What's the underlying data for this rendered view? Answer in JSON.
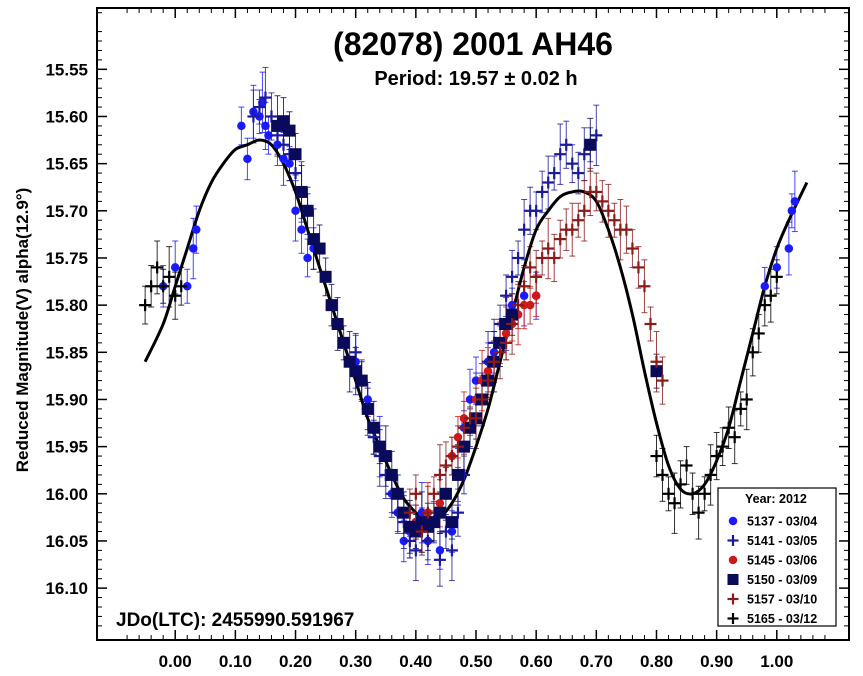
{
  "chart_data": {
    "type": "scatter",
    "title": "(82078) 2001 AH46",
    "subtitle": "Period: 19.57 ± 0.02 h",
    "ylabel": "Reduced Magnitude(V) alpha(12.9°)",
    "xlabel": "",
    "annotation": "JDo(LTC): 2455990.591967",
    "xlim": [
      -0.13,
      1.12
    ],
    "ylim": [
      16.155,
      15.485
    ],
    "y_inverted": true,
    "grid": false,
    "x_ticks": [
      "0.00",
      "0.10",
      "0.20",
      "0.30",
      "0.40",
      "0.50",
      "0.60",
      "0.70",
      "0.80",
      "0.90",
      "1.00"
    ],
    "y_ticks": [
      "15.55",
      "15.60",
      "15.65",
      "15.70",
      "15.75",
      "15.80",
      "15.85",
      "15.90",
      "15.95",
      "16.00",
      "16.05",
      "16.10"
    ],
    "legend": {
      "title": "Year: 2012",
      "position": "bottom-right"
    },
    "series": [
      {
        "name": "5137 - 03/04",
        "marker": "circle",
        "color": "#1a1aff",
        "x": [
          -0.02,
          0.0,
          0.02,
          0.03,
          0.035,
          0.11,
          0.12,
          0.13,
          0.14,
          0.145,
          0.15,
          0.155,
          0.17,
          0.18,
          0.19,
          0.2,
          0.21,
          0.22,
          0.23,
          0.3,
          0.32,
          0.34,
          0.36,
          0.37,
          0.38,
          0.39,
          0.4,
          0.41,
          0.42,
          0.44,
          0.46,
          0.47,
          0.48,
          0.49,
          0.5,
          0.52,
          0.53,
          0.55,
          0.56,
          0.58,
          0.6,
          0.98,
          1.0,
          1.02,
          1.025,
          1.03
        ],
        "y": [
          15.78,
          15.76,
          15.78,
          15.74,
          15.72,
          15.61,
          15.645,
          15.595,
          15.6,
          15.585,
          15.61,
          15.62,
          15.63,
          15.645,
          15.65,
          15.7,
          15.72,
          15.75,
          15.74,
          15.86,
          15.9,
          15.95,
          16.0,
          16.02,
          16.05,
          16.04,
          16.03,
          16.02,
          16.05,
          16.06,
          16.04,
          15.98,
          15.93,
          15.9,
          15.88,
          15.86,
          15.85,
          15.82,
          15.8,
          15.79,
          15.79,
          15.78,
          15.76,
          15.74,
          15.7,
          15.69
        ]
      },
      {
        "name": "5141 - 03/05",
        "marker": "plus",
        "color": "#1a1a9a",
        "x": [
          0.13,
          0.14,
          0.15,
          0.16,
          0.17,
          0.18,
          0.19,
          0.2,
          0.21,
          0.22,
          0.3,
          0.31,
          0.32,
          0.33,
          0.34,
          0.35,
          0.36,
          0.37,
          0.38,
          0.39,
          0.4,
          0.41,
          0.42,
          0.43,
          0.44,
          0.45,
          0.46,
          0.47,
          0.48,
          0.49,
          0.5,
          0.51,
          0.52,
          0.53,
          0.54,
          0.55,
          0.56,
          0.57,
          0.58,
          0.59,
          0.6,
          0.61,
          0.62,
          0.63,
          0.64,
          0.65,
          0.66,
          0.67,
          0.68,
          0.69,
          0.7
        ],
        "y": [
          15.6,
          15.59,
          15.58,
          15.6,
          15.62,
          15.63,
          15.64,
          15.66,
          15.68,
          15.7,
          15.85,
          15.88,
          15.91,
          15.94,
          15.96,
          15.98,
          16.0,
          16.02,
          16.03,
          16.05,
          16.06,
          16.04,
          16.05,
          16.03,
          16.07,
          16.04,
          16.06,
          16.02,
          15.98,
          15.93,
          15.9,
          15.88,
          15.86,
          15.84,
          15.82,
          15.79,
          15.77,
          15.75,
          15.72,
          15.7,
          15.7,
          15.68,
          15.67,
          15.66,
          15.64,
          15.63,
          15.65,
          15.66,
          15.64,
          15.63,
          15.62
        ]
      },
      {
        "name": "5145 - 03/06",
        "marker": "circle",
        "color": "#cc1a1a",
        "x": [
          0.4,
          0.42,
          0.44,
          0.46,
          0.47,
          0.48,
          0.5,
          0.51,
          0.52,
          0.53,
          0.54,
          0.55,
          0.56,
          0.57,
          0.58,
          0.59,
          0.6
        ],
        "y": [
          16.03,
          16.02,
          16.01,
          15.96,
          15.94,
          15.92,
          15.9,
          15.88,
          15.87,
          15.86,
          15.84,
          15.83,
          15.82,
          15.81,
          15.8,
          15.8,
          15.79
        ]
      },
      {
        "name": "5150 - 03/09",
        "marker": "square",
        "color": "#0a0a5a",
        "x": [
          0.17,
          0.18,
          0.19,
          0.2,
          0.21,
          0.22,
          0.23,
          0.24,
          0.25,
          0.26,
          0.27,
          0.28,
          0.29,
          0.3,
          0.31,
          0.32,
          0.33,
          0.34,
          0.35,
          0.36,
          0.37,
          0.38,
          0.39,
          0.4,
          0.41,
          0.42,
          0.43,
          0.44,
          0.45,
          0.46,
          0.47,
          0.48,
          0.49,
          0.5,
          0.51,
          0.52,
          0.53,
          0.54,
          0.55,
          0.56,
          0.69,
          0.8
        ],
        "y": [
          15.61,
          15.605,
          15.615,
          15.64,
          15.68,
          15.7,
          15.73,
          15.74,
          15.77,
          15.8,
          15.82,
          15.84,
          15.86,
          15.87,
          15.88,
          15.91,
          15.93,
          15.95,
          15.96,
          15.98,
          16.0,
          16.02,
          16.035,
          16.04,
          16.03,
          16.035,
          16.03,
          16.02,
          16.0,
          16.03,
          15.98,
          15.95,
          15.93,
          15.92,
          15.9,
          15.88,
          15.86,
          15.84,
          15.82,
          15.81,
          15.63,
          15.87
        ]
      },
      {
        "name": "5157 - 03/10",
        "marker": "plus",
        "color": "#8b1a1a",
        "x": [
          0.39,
          0.4,
          0.41,
          0.42,
          0.43,
          0.44,
          0.45,
          0.46,
          0.47,
          0.48,
          0.49,
          0.5,
          0.51,
          0.52,
          0.53,
          0.54,
          0.55,
          0.56,
          0.57,
          0.58,
          0.59,
          0.6,
          0.61,
          0.62,
          0.63,
          0.64,
          0.65,
          0.66,
          0.67,
          0.68,
          0.69,
          0.7,
          0.71,
          0.72,
          0.73,
          0.74,
          0.75,
          0.76,
          0.77,
          0.78,
          0.79,
          0.8,
          0.81
        ],
        "y": [
          16.02,
          16.0,
          16.04,
          16.02,
          16.0,
          15.98,
          15.97,
          15.96,
          15.95,
          15.93,
          15.92,
          15.92,
          15.9,
          15.88,
          15.86,
          15.85,
          15.84,
          15.82,
          15.8,
          15.78,
          15.76,
          15.77,
          15.75,
          15.74,
          15.75,
          15.73,
          15.72,
          15.72,
          15.71,
          15.7,
          15.68,
          15.68,
          15.69,
          15.7,
          15.71,
          15.72,
          15.72,
          15.74,
          15.76,
          15.78,
          15.82,
          15.86,
          15.88
        ]
      },
      {
        "name": "5165 - 03/12",
        "marker": "plus",
        "color": "#000000",
        "x": [
          -0.05,
          -0.04,
          -0.03,
          -0.02,
          -0.01,
          0.0,
          0.01,
          0.8,
          0.81,
          0.82,
          0.83,
          0.84,
          0.85,
          0.86,
          0.87,
          0.88,
          0.89,
          0.9,
          0.91,
          0.92,
          0.93,
          0.94,
          0.95,
          0.96,
          0.97,
          0.98,
          0.99,
          1.0
        ],
        "y": [
          15.8,
          15.78,
          15.76,
          15.78,
          15.77,
          15.79,
          15.78,
          15.96,
          15.98,
          16.0,
          16.01,
          15.99,
          15.97,
          16.0,
          16.02,
          16.0,
          15.98,
          15.96,
          15.95,
          15.93,
          15.94,
          15.91,
          15.9,
          15.85,
          15.83,
          15.8,
          15.79,
          15.77
        ]
      }
    ],
    "fit_curve": {
      "name": "",
      "color": "#000000",
      "x": [
        -0.05,
        -0.02,
        0.0,
        0.02,
        0.04,
        0.06,
        0.08,
        0.1,
        0.12,
        0.14,
        0.16,
        0.18,
        0.2,
        0.22,
        0.24,
        0.26,
        0.28,
        0.3,
        0.32,
        0.34,
        0.36,
        0.38,
        0.4,
        0.42,
        0.44,
        0.46,
        0.48,
        0.5,
        0.52,
        0.54,
        0.56,
        0.58,
        0.6,
        0.62,
        0.64,
        0.66,
        0.68,
        0.7,
        0.72,
        0.74,
        0.76,
        0.78,
        0.8,
        0.82,
        0.84,
        0.86,
        0.88,
        0.9,
        0.92,
        0.94,
        0.96,
        0.98,
        1.0,
        1.02,
        1.05
      ],
      "y": [
        15.86,
        15.82,
        15.78,
        15.74,
        15.7,
        15.67,
        15.65,
        15.635,
        15.63,
        15.625,
        15.63,
        15.65,
        15.68,
        15.72,
        15.76,
        15.8,
        15.84,
        15.88,
        15.92,
        15.95,
        15.98,
        16.005,
        16.02,
        16.03,
        16.025,
        16.01,
        15.985,
        15.95,
        15.91,
        15.86,
        15.81,
        15.76,
        15.72,
        15.7,
        15.685,
        15.68,
        15.68,
        15.69,
        15.72,
        15.76,
        15.81,
        15.87,
        15.925,
        15.97,
        15.995,
        16.0,
        15.99,
        15.965,
        15.93,
        15.88,
        15.83,
        15.78,
        15.74,
        15.71,
        15.67
      ]
    }
  }
}
